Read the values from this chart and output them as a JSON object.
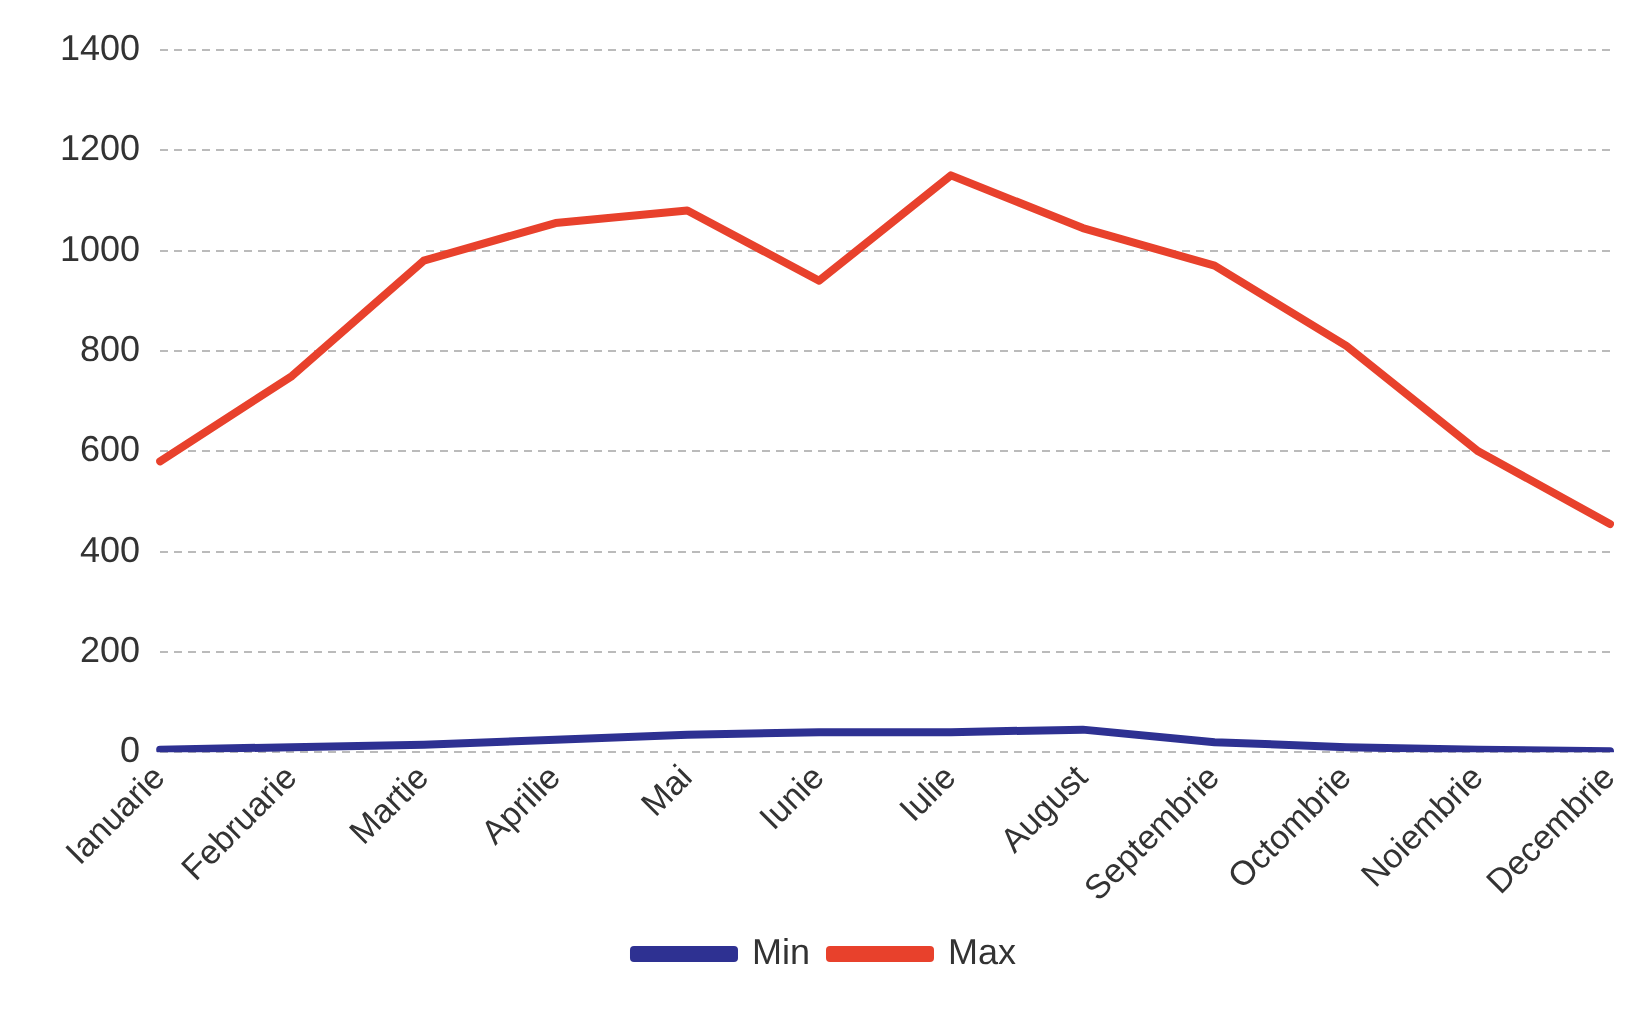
{
  "chart_data": {
    "type": "line",
    "categories": [
      "Ianuarie",
      "Februarie",
      "Martie",
      "Aprilie",
      "Mai",
      "Iunie",
      "Iulie",
      "August",
      "Septembrie",
      "Octombrie",
      "Noiembrie",
      "Decembrie"
    ],
    "series": [
      {
        "name": "Min",
        "color": "#2e3192",
        "values": [
          5,
          10,
          15,
          25,
          35,
          40,
          40,
          45,
          20,
          10,
          5,
          2
        ]
      },
      {
        "name": "Max",
        "color": "#e8412c",
        "values": [
          580,
          750,
          980,
          1055,
          1080,
          940,
          1150,
          1045,
          970,
          810,
          600,
          455
        ]
      }
    ],
    "ylim": [
      0,
      1400
    ],
    "yticks": [
      0,
      200,
      400,
      600,
      800,
      1000,
      1200,
      1400
    ],
    "grid": "y",
    "legend": "bottom",
    "marker": "none",
    "line_style": "solid"
  }
}
